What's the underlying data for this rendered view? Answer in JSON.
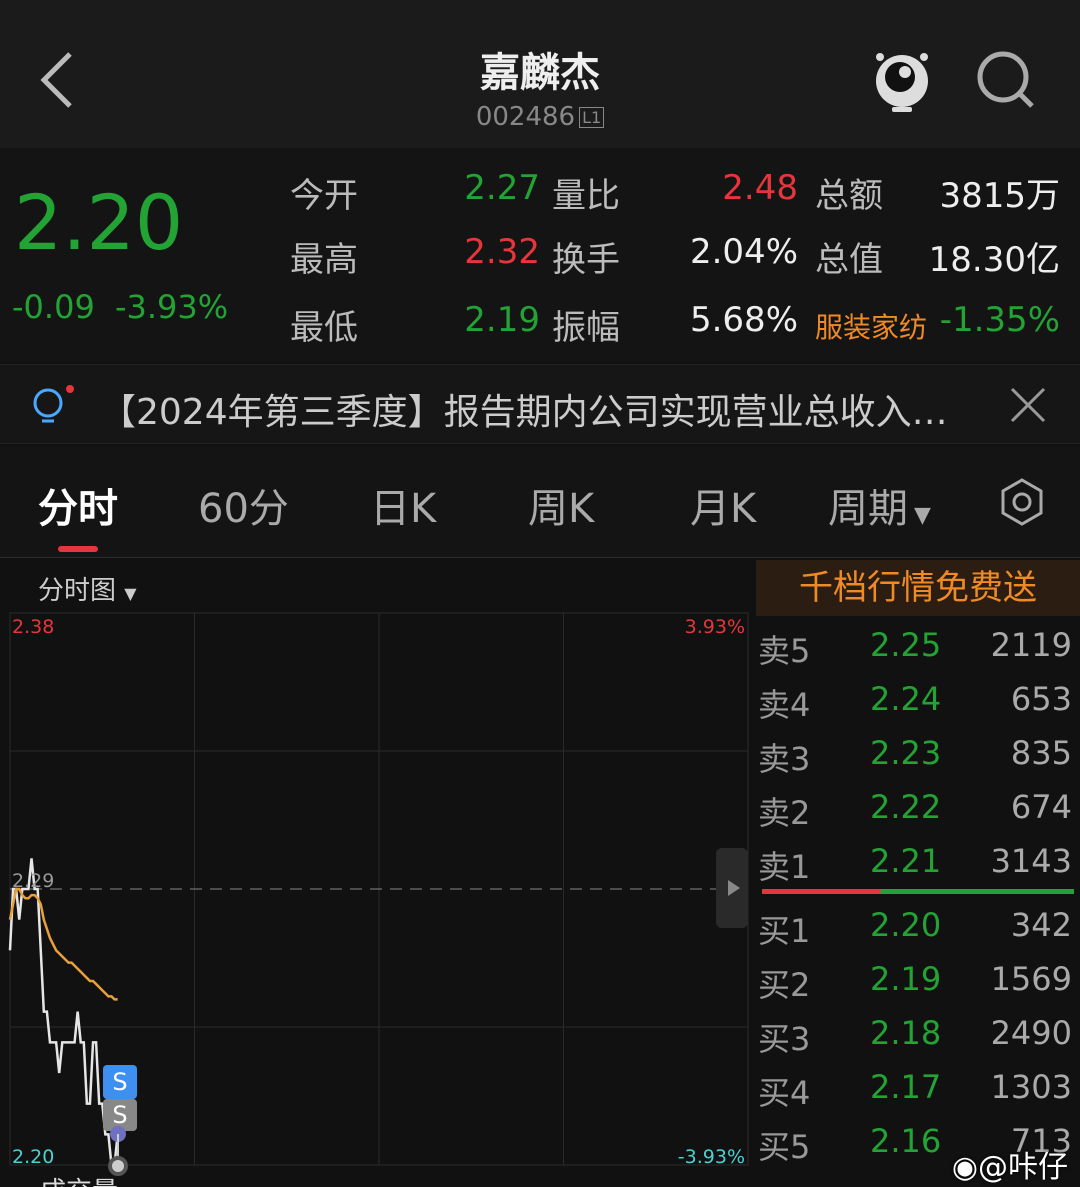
{
  "header": {
    "title": "嘉麟杰",
    "code": "002486",
    "level": "L1"
  },
  "quote": {
    "price": "2.20",
    "change": "-0.09",
    "change_pct": "-3.93%",
    "rows": [
      [
        {
          "label": "今开",
          "value": "2.27",
          "color": "grn"
        },
        {
          "label": "量比",
          "value": "2.48",
          "color": "red"
        },
        {
          "label": "总额",
          "value": "3815万",
          "color": "wht"
        }
      ],
      [
        {
          "label": "最高",
          "value": "2.32",
          "color": "red"
        },
        {
          "label": "换手",
          "value": "2.04%",
          "color": "wht"
        },
        {
          "label": "总值",
          "value": "18.30亿",
          "color": "wht"
        }
      ],
      [
        {
          "label": "最低",
          "value": "2.19",
          "color": "grn"
        },
        {
          "label": "振幅",
          "value": "5.68%",
          "color": "wht"
        },
        {
          "label": "服装家纺",
          "value": "-1.35%",
          "color": "grn"
        }
      ]
    ]
  },
  "news": {
    "text": "【2024年第三季度】报告期内公司实现营业总收入…"
  },
  "tabs": [
    {
      "label": "分时"
    },
    {
      "label": "60分"
    },
    {
      "label": "日K"
    },
    {
      "label": "周K"
    },
    {
      "label": "月K"
    },
    {
      "label": "周期"
    }
  ],
  "chart": {
    "selector": "分时图",
    "bottom_label": "成交量",
    "marker1": "S",
    "marker2": "S"
  },
  "chart_data": {
    "type": "line",
    "ylim": [
      2.2,
      2.38
    ],
    "prev_close": 2.29,
    "y_labels": {
      "top": "2.38",
      "mid": "2.29",
      "bottom": "2.20",
      "top_pct": "3.93%",
      "bottom_pct": "-3.93%"
    },
    "x_minutes": 240,
    "series": [
      {
        "color": "#e6e6e6",
        "values": [
          2.27,
          2.29,
          2.29,
          2.28,
          2.29,
          2.29,
          2.29,
          2.3,
          2.29,
          2.29,
          2.27,
          2.25,
          2.25,
          2.24,
          2.24,
          2.24,
          2.23,
          2.24,
          2.24,
          2.24,
          2.24,
          2.24,
          2.25,
          2.24,
          2.24,
          2.22,
          2.22,
          2.24,
          2.24,
          2.22,
          2.22,
          2.21,
          2.21,
          2.2,
          2.2,
          2.21
        ]
      },
      {
        "color": "#e8a03c",
        "values": [
          2.28,
          2.285,
          2.29,
          2.29,
          2.288,
          2.287,
          2.287,
          2.288,
          2.288,
          2.287,
          2.285,
          2.28,
          2.277,
          2.274,
          2.272,
          2.27,
          2.269,
          2.268,
          2.267,
          2.266,
          2.266,
          2.265,
          2.264,
          2.263,
          2.262,
          2.261,
          2.26,
          2.26,
          2.259,
          2.258,
          2.257,
          2.256,
          2.255,
          2.255,
          2.254,
          2.254
        ]
      }
    ]
  },
  "orderbook": {
    "promo": "千档行情免费送",
    "sell": [
      {
        "name": "卖5",
        "price": "2.25",
        "vol": "2119"
      },
      {
        "name": "卖4",
        "price": "2.24",
        "vol": "653"
      },
      {
        "name": "卖3",
        "price": "2.23",
        "vol": "835"
      },
      {
        "name": "卖2",
        "price": "2.22",
        "vol": "674"
      },
      {
        "name": "卖1",
        "price": "2.21",
        "vol": "3143"
      }
    ],
    "buy": [
      {
        "name": "买1",
        "price": "2.20",
        "vol": "342"
      },
      {
        "name": "买2",
        "price": "2.19",
        "vol": "1569"
      },
      {
        "name": "买3",
        "price": "2.18",
        "vol": "2490"
      },
      {
        "name": "买4",
        "price": "2.17",
        "vol": "1303"
      },
      {
        "name": "买5",
        "price": "2.16",
        "vol": "713"
      }
    ],
    "sell_ratio": 0.38
  },
  "watermark": "@咔仔"
}
